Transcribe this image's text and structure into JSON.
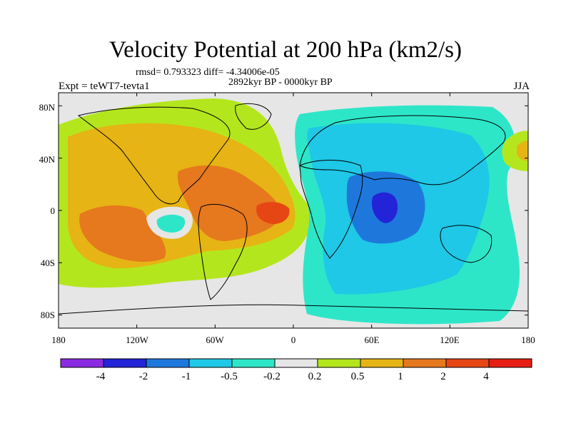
{
  "header": {
    "title": "Velocity Potential at 200 hPa (km2/s)",
    "stats": "rmsd= 0.793323 diff= -4.34006e-05",
    "period": "2892kyr BP - 0000kyr BP",
    "experiment": "Expt = teWT7-tevta1",
    "season": "JJA"
  },
  "map": {
    "lat_labels": [
      "80N",
      "40N",
      "0",
      "40S",
      "80S"
    ],
    "lon_labels": [
      "180",
      "120W",
      "60W",
      "0",
      "60E",
      "120E",
      "180"
    ],
    "lat_values": [
      80,
      40,
      0,
      -40,
      -80
    ],
    "lon_values": [
      -180,
      -120,
      -60,
      0,
      60,
      120,
      180
    ],
    "lat_range": [
      -90,
      90
    ],
    "lon_range": [
      -180,
      180
    ],
    "background_color": "#e6e6e6"
  },
  "colorbar": {
    "labels": [
      "-4",
      "-2",
      "-1",
      "-0.5",
      "-0.2",
      "0.2",
      "0.5",
      "1",
      "2",
      "4"
    ],
    "colors": [
      "#8a2be2",
      "#2323d8",
      "#1e78dc",
      "#1ec8e6",
      "#2de6c8",
      "#e6e6e6",
      "#b4e61e",
      "#e6b414",
      "#e6781e",
      "#e64614",
      "#e61e14"
    ]
  }
}
